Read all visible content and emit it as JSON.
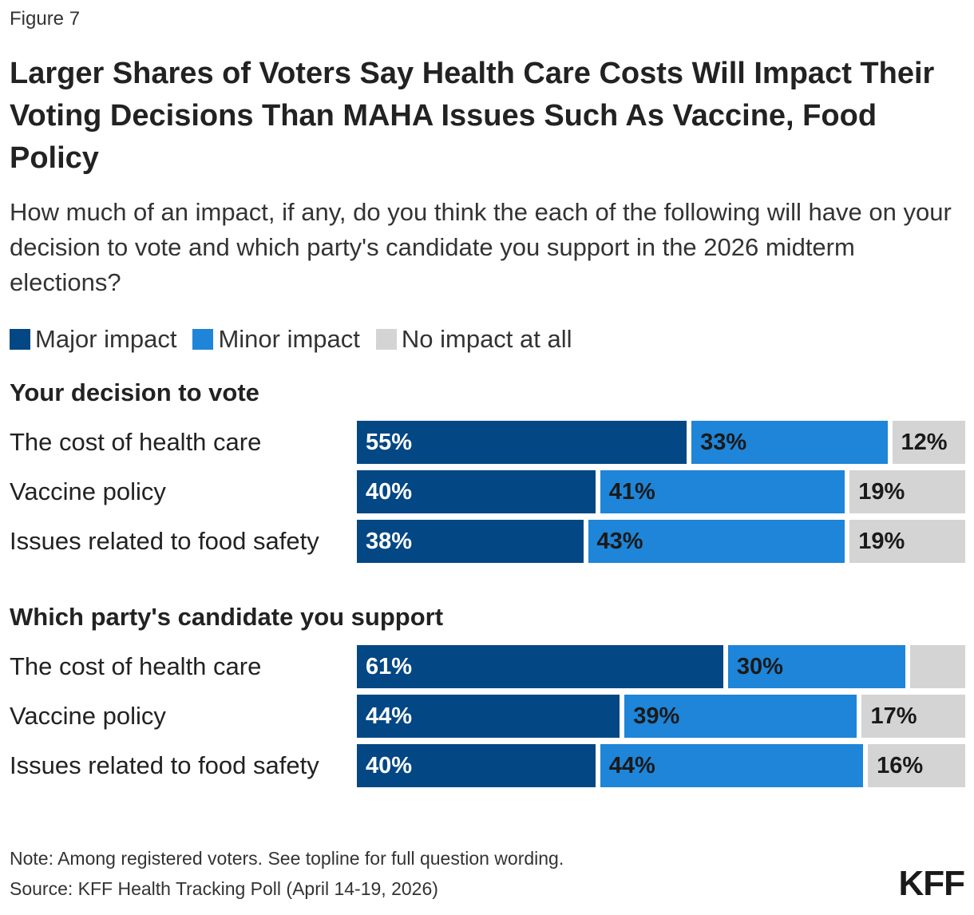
{
  "figure_label": "Figure 7",
  "title": "Larger Shares of Voters Say Health Care Costs Will Impact Their Voting Decisions Than MAHA Issues Such As Vaccine, Food Policy",
  "subtitle": "How much of an impact, if any, do you think the each of the following will have on your decision to vote and which party's candidate you support in the 2026 midterm elections?",
  "note": "Note: Among registered voters. See topline for full question wording.",
  "source": "Source: KFF Health Tracking Poll (April 14-19, 2026)",
  "logo_text": "KFF",
  "colors": {
    "major": "#034784",
    "minor": "#1e85d8",
    "none": "#d4d4d4",
    "label_on_dark": "#ffffff",
    "label_on_mid": "#1a1a1a",
    "label_on_light": "#1a1a1a"
  },
  "chart_data": {
    "type": "bar",
    "orientation": "horizontal",
    "stacked": true,
    "xlim": [
      0,
      100
    ],
    "legend": {
      "placement": "top-left",
      "entries": [
        "Major impact",
        "Minor impact",
        "No impact at all"
      ]
    },
    "groups": [
      {
        "title": "Your decision to vote",
        "categories": [
          "The cost of health care",
          "Vaccine policy",
          "Issues related to food safety"
        ],
        "series": [
          {
            "name": "Major impact",
            "values": [
              55,
              40,
              38
            ],
            "labels": [
              "55%",
              "40%",
              "38%"
            ]
          },
          {
            "name": "Minor impact",
            "values": [
              33,
              41,
              43
            ],
            "labels": [
              "33%",
              "41%",
              "43%"
            ]
          },
          {
            "name": "No impact at all",
            "values": [
              12,
              19,
              19
            ],
            "labels": [
              "12%",
              "19%",
              "19%"
            ]
          }
        ]
      },
      {
        "title": "Which party's candidate you support",
        "categories": [
          "The cost of health care",
          "Vaccine policy",
          "Issues related to food safety"
        ],
        "series": [
          {
            "name": "Major impact",
            "values": [
              61,
              44,
              40
            ],
            "labels": [
              "61%",
              "44%",
              "40%"
            ]
          },
          {
            "name": "Minor impact",
            "values": [
              30,
              39,
              44
            ],
            "labels": [
              "30%",
              "39%",
              "44%"
            ]
          },
          {
            "name": "No impact at all",
            "values": [
              9,
              17,
              16
            ],
            "labels": [
              "",
              "17%",
              "16%"
            ]
          }
        ]
      }
    ]
  }
}
